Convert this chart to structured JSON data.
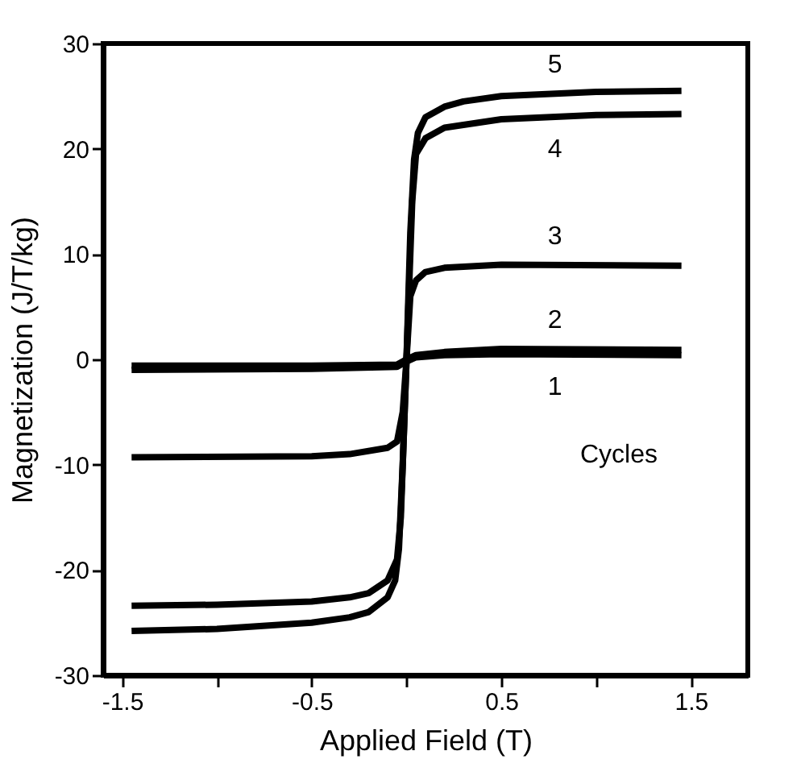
{
  "chart_data": {
    "type": "line",
    "xlabel": "Applied Field (T)",
    "ylabel": "Magnetization (J/T/kg)",
    "xlim": [
      -1.6,
      1.8
    ],
    "ylim": [
      -30,
      30
    ],
    "xticks": [
      -1.5,
      {
        "value": -1,
        "label": null
      },
      -0.5,
      {
        "value": 0,
        "label": null
      },
      0.5,
      {
        "value": 1,
        "label": null
      },
      1.5
    ],
    "yticks": [
      -30,
      -20,
      -10,
      0,
      10,
      20,
      30
    ],
    "grid": false,
    "legend": false,
    "marker": "none",
    "line_style": "solid",
    "series": [
      {
        "name": "1",
        "color": "#000000",
        "x": [
          -1.45,
          -0.5,
          -0.05,
          0,
          0.05,
          0.2,
          0.5,
          1.45
        ],
        "values": [
          -1.0,
          -0.9,
          -0.7,
          -0.2,
          0.2,
          0.4,
          0.5,
          0.4
        ]
      },
      {
        "name": "2",
        "color": "#000000",
        "x": [
          -1.45,
          -0.5,
          -0.05,
          0,
          0.05,
          0.2,
          0.5,
          1.45
        ],
        "values": [
          -0.6,
          -0.6,
          -0.5,
          0,
          0.4,
          0.7,
          1.0,
          0.9
        ]
      },
      {
        "name": "3",
        "color": "#000000",
        "x": [
          -1.45,
          -0.5,
          -0.3,
          -0.1,
          -0.05,
          -0.02,
          0,
          0.02,
          0.05,
          0.1,
          0.2,
          0.5,
          1.45
        ],
        "values": [
          -9.3,
          -9.2,
          -9.0,
          -8.4,
          -7.8,
          -5,
          0,
          6,
          7.5,
          8.3,
          8.7,
          9.0,
          8.9
        ]
      },
      {
        "name": "4",
        "color": "#000000",
        "x": [
          -1.45,
          -1.0,
          -0.5,
          -0.3,
          -0.2,
          -0.1,
          -0.05,
          -0.03,
          0,
          0.03,
          0.05,
          0.1,
          0.2,
          0.5,
          1.0,
          1.45
        ],
        "values": [
          -23.4,
          -23.3,
          -23.0,
          -22.6,
          -22.2,
          -21,
          -19,
          -15,
          0,
          15,
          19.5,
          21,
          22,
          22.8,
          23.2,
          23.3
        ]
      },
      {
        "name": "5",
        "color": "#000000",
        "x": [
          -1.45,
          -1.0,
          -0.5,
          -0.3,
          -0.2,
          -0.1,
          -0.06,
          -0.04,
          -0.02,
          0,
          0.02,
          0.04,
          0.06,
          0.1,
          0.2,
          0.3,
          0.5,
          1.0,
          1.45
        ],
        "values": [
          -25.8,
          -25.6,
          -25.0,
          -24.5,
          -24.0,
          -22.6,
          -21,
          -18,
          -10,
          0,
          12,
          19,
          21.5,
          23,
          24,
          24.5,
          25.0,
          25.4,
          25.5
        ]
      }
    ],
    "annotations": [
      "Cycles"
    ]
  }
}
